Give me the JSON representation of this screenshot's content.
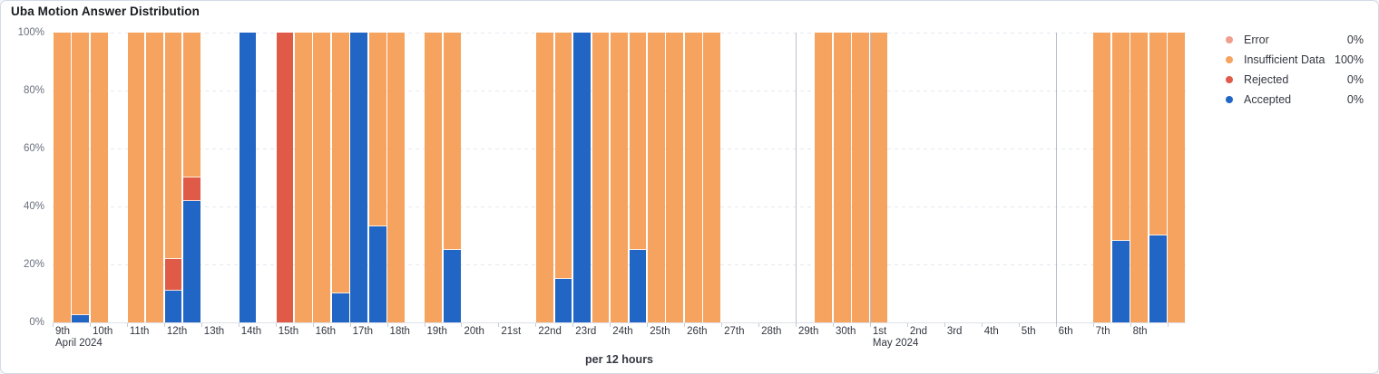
{
  "chart_data": {
    "type": "bar",
    "stacked": true,
    "normalized": "percent",
    "title": "Uba Motion Answer Distribution",
    "xlabel": "per 12 hours",
    "ylim": [
      0,
      100
    ],
    "yticks": [
      {
        "value": 0,
        "label": "0%"
      },
      {
        "value": 20,
        "label": "20%"
      },
      {
        "value": 40,
        "label": "40%"
      },
      {
        "value": 60,
        "label": "60%"
      },
      {
        "value": 80,
        "label": "80%"
      },
      {
        "value": 100,
        "label": "100%"
      }
    ],
    "slot_hours": 12,
    "num_slots": 61,
    "day_ticks": [
      {
        "day": 0,
        "label": "9th",
        "sublabel": "April 2024"
      },
      {
        "day": 1,
        "label": "10th"
      },
      {
        "day": 2,
        "label": "11th"
      },
      {
        "day": 3,
        "label": "12th"
      },
      {
        "day": 4,
        "label": "13th"
      },
      {
        "day": 5,
        "label": "14th"
      },
      {
        "day": 6,
        "label": "15th"
      },
      {
        "day": 7,
        "label": "16th"
      },
      {
        "day": 8,
        "label": "17th"
      },
      {
        "day": 9,
        "label": "18th"
      },
      {
        "day": 10,
        "label": "19th"
      },
      {
        "day": 11,
        "label": "20th"
      },
      {
        "day": 12,
        "label": "21st"
      },
      {
        "day": 13,
        "label": "22nd"
      },
      {
        "day": 14,
        "label": "23rd"
      },
      {
        "day": 15,
        "label": "24th"
      },
      {
        "day": 16,
        "label": "25th"
      },
      {
        "day": 17,
        "label": "26th"
      },
      {
        "day": 18,
        "label": "27th"
      },
      {
        "day": 19,
        "label": "28th"
      },
      {
        "day": 20,
        "label": "29th"
      },
      {
        "day": 21,
        "label": "30th"
      },
      {
        "day": 22,
        "label": "1st",
        "sublabel": "May 2024"
      },
      {
        "day": 23,
        "label": "2nd"
      },
      {
        "day": 24,
        "label": "3rd"
      },
      {
        "day": 25,
        "label": "4th"
      },
      {
        "day": 26,
        "label": "5th"
      },
      {
        "day": 27,
        "label": "6th"
      },
      {
        "day": 28,
        "label": "7th"
      },
      {
        "day": 29,
        "label": "8th"
      },
      {
        "day": 30,
        "label": ""
      }
    ],
    "guide_days": [
      20,
      22,
      27
    ],
    "series_order": [
      "accepted",
      "rejected",
      "error",
      "insufficient"
    ],
    "series_colors": {
      "accepted": "#2166c5",
      "rejected": "#e05a48",
      "error": "#f09e8c",
      "insufficient": "#f5a35e"
    },
    "bars": [
      {
        "slot": 0,
        "time": "Apr 9 AM",
        "insufficient": 100
      },
      {
        "slot": 1,
        "time": "Apr 9 PM",
        "accepted": 2.5,
        "insufficient": 97.5
      },
      {
        "slot": 2,
        "time": "Apr 10 AM",
        "insufficient": 100
      },
      {
        "slot": 4,
        "time": "Apr 11 AM",
        "insufficient": 100
      },
      {
        "slot": 5,
        "time": "Apr 11 PM",
        "insufficient": 100
      },
      {
        "slot": 6,
        "time": "Apr 12 AM",
        "accepted": 11,
        "rejected": 11,
        "insufficient": 78
      },
      {
        "slot": 7,
        "time": "Apr 12 PM",
        "accepted": 42,
        "rejected": 8,
        "insufficient": 50
      },
      {
        "slot": 10,
        "time": "Apr 14 AM",
        "accepted": 100
      },
      {
        "slot": 12,
        "time": "Apr 15 AM",
        "rejected": 100
      },
      {
        "slot": 13,
        "time": "Apr 15 PM",
        "insufficient": 100
      },
      {
        "slot": 14,
        "time": "Apr 16 AM",
        "insufficient": 100
      },
      {
        "slot": 15,
        "time": "Apr 16 PM",
        "accepted": 10,
        "insufficient": 90
      },
      {
        "slot": 16,
        "time": "Apr 17 AM",
        "accepted": 100
      },
      {
        "slot": 17,
        "time": "Apr 17 PM",
        "accepted": 33,
        "insufficient": 67
      },
      {
        "slot": 18,
        "time": "Apr 18 AM",
        "insufficient": 100
      },
      {
        "slot": 20,
        "time": "Apr 19 AM",
        "insufficient": 100
      },
      {
        "slot": 21,
        "time": "Apr 19 PM",
        "accepted": 25,
        "insufficient": 75
      },
      {
        "slot": 26,
        "time": "Apr 22 AM",
        "insufficient": 100
      },
      {
        "slot": 27,
        "time": "Apr 22 PM",
        "accepted": 15,
        "insufficient": 85
      },
      {
        "slot": 28,
        "time": "Apr 23 AM",
        "accepted": 100
      },
      {
        "slot": 29,
        "time": "Apr 23 PM",
        "insufficient": 100
      },
      {
        "slot": 30,
        "time": "Apr 24 AM",
        "insufficient": 100
      },
      {
        "slot": 31,
        "time": "Apr 24 PM",
        "accepted": 25,
        "insufficient": 75
      },
      {
        "slot": 32,
        "time": "Apr 25 AM",
        "insufficient": 100
      },
      {
        "slot": 33,
        "time": "Apr 25 PM",
        "insufficient": 100
      },
      {
        "slot": 34,
        "time": "Apr 26 AM",
        "insufficient": 100
      },
      {
        "slot": 35,
        "time": "Apr 26 PM",
        "insufficient": 100
      },
      {
        "slot": 41,
        "time": "Apr 29 PM",
        "insufficient": 100
      },
      {
        "slot": 42,
        "time": "Apr 30 AM",
        "insufficient": 100
      },
      {
        "slot": 43,
        "time": "Apr 30 PM",
        "insufficient": 100
      },
      {
        "slot": 44,
        "time": "May 1 AM",
        "insufficient": 100
      },
      {
        "slot": 56,
        "time": "May 7 AM",
        "insufficient": 100
      },
      {
        "slot": 57,
        "time": "May 7 PM",
        "accepted": 28,
        "insufficient": 72
      },
      {
        "slot": 58,
        "time": "May 8 AM",
        "insufficient": 100
      },
      {
        "slot": 59,
        "time": "May 8 PM",
        "accepted": 30,
        "insufficient": 70
      },
      {
        "slot": 60,
        "time": "May 9 AM",
        "insufficient": 100
      }
    ],
    "legend_position": "right"
  },
  "legend": {
    "items": [
      {
        "label": "Error",
        "value": "0%",
        "color": "#f09e8c"
      },
      {
        "label": "Insufficient Data",
        "value": "100%",
        "color": "#f5a35e"
      },
      {
        "label": "Rejected",
        "value": "0%",
        "color": "#e05a48"
      },
      {
        "label": "Accepted",
        "value": "0%",
        "color": "#2166c5"
      }
    ]
  }
}
